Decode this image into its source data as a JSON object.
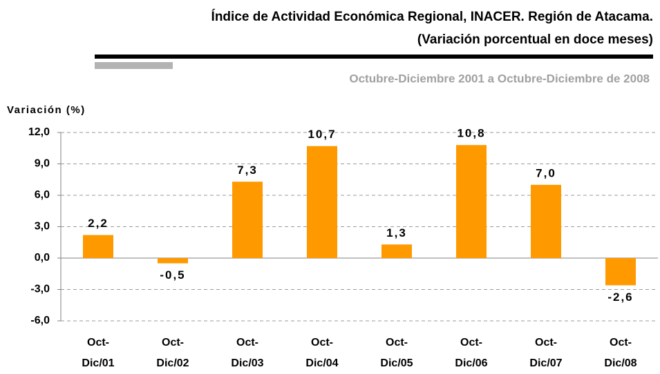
{
  "chart_data": {
    "type": "bar",
    "title": [
      "Índice de Actividad Económica Regional, INACER. Región de Atacama.",
      "(Variación porcentual en doce meses)"
    ],
    "subtitle": "Octubre-Diciembre 2001 a Octubre-Diciembre de 2008",
    "ylabel": "Variación (%)",
    "categories": [
      "Oct-Dic/01",
      "Oct-Dic/02",
      "Oct-Dic/03",
      "Oct-Dic/04",
      "Oct-Dic/05",
      "Oct-Dic/06",
      "Oct-Dic/07",
      "Oct-Dic/08"
    ],
    "values": [
      2.2,
      -0.5,
      7.3,
      10.7,
      1.3,
      10.8,
      7.0,
      -2.6
    ],
    "value_labels": [
      "2,2",
      "-0,5",
      "7,3",
      "10,7",
      "1,3",
      "10,8",
      "7,0",
      "-2,6"
    ],
    "color": "#ff9900",
    "ylim": [
      -6,
      12
    ],
    "yticks": [
      {
        "value": -6,
        "label": "-6,0"
      },
      {
        "value": -3,
        "label": "-3,0"
      },
      {
        "value": 0,
        "label": "0,0"
      },
      {
        "value": 3,
        "label": "3,0"
      },
      {
        "value": 6,
        "label": "6,0"
      },
      {
        "value": 9,
        "label": "9,0"
      },
      {
        "value": 12,
        "label": "12,0"
      }
    ],
    "grid": true
  }
}
